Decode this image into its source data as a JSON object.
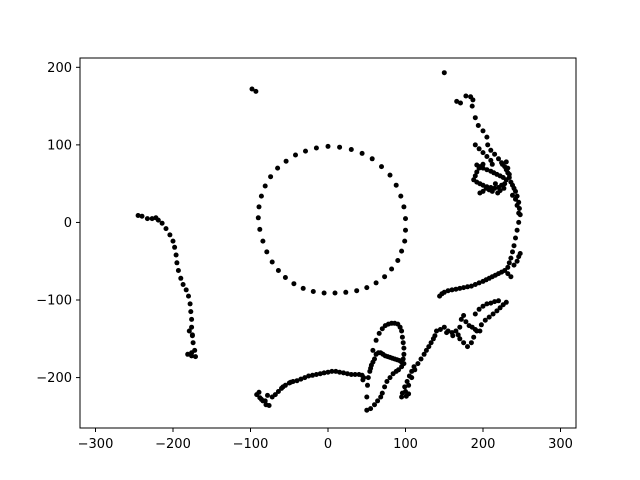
{
  "chart_data": {
    "type": "scatter",
    "title": "",
    "xlabel": "",
    "ylabel": "",
    "xlim": [
      -320,
      320
    ],
    "ylim": [
      -265,
      212
    ],
    "xticks": [
      -300,
      -200,
      -100,
      0,
      100,
      200,
      300
    ],
    "yticks": [
      -200,
      -100,
      0,
      100,
      200
    ],
    "grid": false,
    "marker_color": "#000000",
    "series": [
      {
        "points": [
          [
            0,
            98
          ],
          [
            15,
            97
          ],
          [
            30,
            94
          ],
          [
            44,
            89
          ],
          [
            57,
            82
          ],
          [
            69,
            72
          ],
          [
            80,
            61
          ],
          [
            88,
            48
          ],
          [
            94,
            34
          ],
          [
            98,
            20
          ],
          [
            100,
            5
          ],
          [
            100,
            -10
          ],
          [
            99,
            -24
          ],
          [
            95,
            -37
          ],
          [
            90,
            -49
          ],
          [
            82,
            -60
          ],
          [
            73,
            -70
          ],
          [
            62,
            -78
          ],
          [
            50,
            -84
          ],
          [
            37,
            -88
          ],
          [
            23,
            -90
          ],
          [
            9,
            -91
          ],
          [
            -5,
            -91
          ],
          [
            -19,
            -89
          ],
          [
            -32,
            -85
          ],
          [
            -44,
            -79
          ],
          [
            -55,
            -71
          ],
          [
            -64,
            -62
          ],
          [
            -72,
            -51
          ],
          [
            -79,
            -38
          ],
          [
            -84,
            -24
          ],
          [
            -88,
            -9
          ],
          [
            -90,
            6
          ],
          [
            -89,
            20
          ],
          [
            -86,
            34
          ],
          [
            -81,
            47
          ],
          [
            -74,
            59
          ],
          [
            -65,
            70
          ],
          [
            -54,
            79
          ],
          [
            -42,
            87
          ],
          [
            -29,
            92
          ],
          [
            -15,
            96
          ],
          [
            -245,
            9
          ],
          [
            -240,
            8
          ],
          [
            -233,
            5
          ],
          [
            -227,
            5
          ],
          [
            -222,
            6
          ],
          [
            -219,
            3
          ],
          [
            -214,
            -1
          ],
          [
            -209,
            -8
          ],
          [
            -204,
            -16
          ],
          [
            -200,
            -24
          ],
          [
            -198,
            -32
          ],
          [
            -196,
            -42
          ],
          [
            -195,
            -52
          ],
          [
            -193,
            -62
          ],
          [
            -190,
            -72
          ],
          [
            -187,
            -80
          ],
          [
            -183,
            -87
          ],
          [
            -180,
            -95
          ],
          [
            -178,
            -105
          ],
          [
            -177,
            -115
          ],
          [
            -176,
            -125
          ],
          [
            -176,
            -135
          ],
          [
            -175,
            -145
          ],
          [
            -174,
            -155
          ],
          [
            -172,
            -165
          ],
          [
            -176,
            -168
          ],
          [
            -181,
            -170
          ],
          [
            -176,
            -172
          ],
          [
            -171,
            -173
          ],
          [
            -179,
            -140
          ],
          [
            -175,
            -146
          ],
          [
            -98,
            172
          ],
          [
            -93,
            169
          ],
          [
            150,
            193
          ],
          [
            166,
            156
          ],
          [
            171,
            154
          ],
          [
            178,
            163
          ],
          [
            184,
            162
          ],
          [
            187,
            158
          ],
          [
            186,
            150
          ],
          [
            190,
            135
          ],
          [
            194,
            125
          ],
          [
            200,
            118
          ],
          [
            205,
            110
          ],
          [
            206,
            100
          ],
          [
            210,
            93
          ],
          [
            215,
            88
          ],
          [
            220,
            82
          ],
          [
            224,
            77
          ],
          [
            228,
            72
          ],
          [
            230,
            68
          ],
          [
            232,
            64
          ],
          [
            234,
            58
          ],
          [
            236,
            52
          ],
          [
            238,
            48
          ],
          [
            240,
            44
          ],
          [
            242,
            40
          ],
          [
            244,
            34
          ],
          [
            246,
            26
          ],
          [
            247,
            18
          ],
          [
            248,
            10
          ],
          [
            246,
            0
          ],
          [
            244,
            -10
          ],
          [
            242,
            -20
          ],
          [
            240,
            -30
          ],
          [
            238,
            -38
          ],
          [
            236,
            -46
          ],
          [
            234,
            -52
          ],
          [
            232,
            -58
          ],
          [
            228,
            -62
          ],
          [
            224,
            -64
          ],
          [
            220,
            -66
          ],
          [
            216,
            -68
          ],
          [
            212,
            -70
          ],
          [
            208,
            -72
          ],
          [
            204,
            -74
          ],
          [
            200,
            -76
          ],
          [
            195,
            -78
          ],
          [
            190,
            -80
          ],
          [
            185,
            -82
          ],
          [
            180,
            -83
          ],
          [
            175,
            -84
          ],
          [
            170,
            -85
          ],
          [
            165,
            -86
          ],
          [
            160,
            -87
          ],
          [
            155,
            -88
          ],
          [
            150,
            -90
          ],
          [
            147,
            -92
          ],
          [
            144,
            -95
          ],
          [
            190,
            100
          ],
          [
            195,
            95
          ],
          [
            200,
            90
          ],
          [
            205,
            85
          ],
          [
            210,
            80
          ],
          [
            212,
            75
          ],
          [
            200,
            75
          ],
          [
            195,
            70
          ],
          [
            192,
            65
          ],
          [
            190,
            60
          ],
          [
            188,
            55
          ],
          [
            192,
            52
          ],
          [
            196,
            50
          ],
          [
            200,
            48
          ],
          [
            205,
            46
          ],
          [
            210,
            45
          ],
          [
            215,
            44
          ],
          [
            220,
            45
          ],
          [
            224,
            48
          ],
          [
            228,
            50
          ],
          [
            230,
            55
          ],
          [
            226,
            58
          ],
          [
            222,
            60
          ],
          [
            218,
            62
          ],
          [
            214,
            64
          ],
          [
            210,
            66
          ],
          [
            205,
            68
          ],
          [
            200,
            70
          ],
          [
            196,
            72
          ],
          [
            192,
            74
          ],
          [
            225,
            75
          ],
          [
            230,
            78
          ],
          [
            232,
            70
          ],
          [
            234,
            62
          ],
          [
            216,
            50
          ],
          [
            212,
            40
          ],
          [
            208,
            42
          ],
          [
            204,
            44
          ],
          [
            200,
            40
          ],
          [
            196,
            38
          ],
          [
            219,
            38
          ],
          [
            222,
            41
          ],
          [
            227,
            44
          ],
          [
            238,
            35
          ],
          [
            242,
            30
          ],
          [
            244,
            22
          ],
          [
            246,
            12
          ],
          [
            236,
            -70
          ],
          [
            232,
            -66
          ],
          [
            240,
            -55
          ],
          [
            244,
            -50
          ],
          [
            246,
            -44
          ],
          [
            248,
            -40
          ],
          [
            140,
            -140
          ],
          [
            145,
            -138
          ],
          [
            150,
            -135
          ],
          [
            155,
            -140
          ],
          [
            160,
            -142
          ],
          [
            165,
            -140
          ],
          [
            170,
            -135
          ],
          [
            172,
            -125
          ],
          [
            175,
            -120
          ],
          [
            178,
            -128
          ],
          [
            182,
            -133
          ],
          [
            186,
            -135
          ],
          [
            190,
            -138
          ],
          [
            196,
            -140
          ],
          [
            198,
            -132
          ],
          [
            203,
            -126
          ],
          [
            208,
            -122
          ],
          [
            213,
            -118
          ],
          [
            218,
            -114
          ],
          [
            222,
            -110
          ],
          [
            226,
            -106
          ],
          [
            230,
            -103
          ],
          [
            190,
            -118
          ],
          [
            195,
            -112
          ],
          [
            200,
            -108
          ],
          [
            205,
            -105
          ],
          [
            210,
            -104
          ],
          [
            215,
            -102
          ],
          [
            220,
            -101
          ],
          [
            170,
            -150
          ],
          [
            175,
            -155
          ],
          [
            180,
            -160
          ],
          [
            185,
            -155
          ],
          [
            188,
            -148
          ],
          [
            192,
            -140
          ],
          [
            168,
            -145
          ],
          [
            161,
            -146
          ],
          [
            153,
            -142
          ],
          [
            95,
            -225
          ],
          [
            100,
            -218
          ],
          [
            104,
            -210
          ],
          [
            108,
            -200
          ],
          [
            112,
            -190
          ],
          [
            116,
            -182
          ],
          [
            120,
            -176
          ],
          [
            124,
            -170
          ],
          [
            127,
            -165
          ],
          [
            130,
            -160
          ],
          [
            133,
            -155
          ],
          [
            136,
            -150
          ],
          [
            138,
            -146
          ],
          [
            96,
            -220
          ],
          [
            99,
            -212
          ],
          [
            102,
            -205
          ],
          [
            105,
            -198
          ],
          [
            108,
            -192
          ],
          [
            111,
            -186
          ],
          [
            101,
            -224
          ],
          [
            104,
            -221
          ],
          [
            58,
            -165
          ],
          [
            62,
            -152
          ],
          [
            66,
            -143
          ],
          [
            70,
            -137
          ],
          [
            74,
            -133
          ],
          [
            78,
            -131
          ],
          [
            82,
            -130
          ],
          [
            86,
            -130
          ],
          [
            90,
            -131
          ],
          [
            93,
            -135
          ],
          [
            95,
            -140
          ],
          [
            96,
            -148
          ],
          [
            97,
            -155
          ],
          [
            98,
            -162
          ],
          [
            98,
            -170
          ],
          [
            97,
            -176
          ],
          [
            95,
            -180
          ],
          [
            92,
            -178
          ],
          [
            89,
            -177
          ],
          [
            86,
            -176
          ],
          [
            83,
            -175
          ],
          [
            80,
            -174
          ],
          [
            77,
            -173
          ],
          [
            74,
            -172
          ],
          [
            71,
            -170
          ],
          [
            68,
            -168
          ],
          [
            65,
            -168
          ],
          [
            62,
            -170
          ],
          [
            60,
            -176
          ],
          [
            58,
            -180
          ],
          [
            56,
            -184
          ],
          [
            55,
            -188
          ],
          [
            54,
            -192
          ],
          [
            52,
            -200
          ],
          [
            51,
            -210
          ],
          [
            50,
            -225
          ],
          [
            50,
            -242
          ],
          [
            55,
            -240
          ],
          [
            60,
            -235
          ],
          [
            64,
            -230
          ],
          [
            68,
            -225
          ],
          [
            70,
            -220
          ],
          [
            73,
            -212
          ],
          [
            76,
            -205
          ],
          [
            80,
            -200
          ],
          [
            84,
            -195
          ],
          [
            88,
            -192
          ],
          [
            91,
            -190
          ],
          [
            95,
            -186
          ],
          [
            98,
            -182
          ],
          [
            -92,
            -222
          ],
          [
            -88,
            -226
          ],
          [
            -84,
            -230
          ],
          [
            -80,
            -235
          ],
          [
            -76,
            -236
          ],
          [
            -72,
            -225
          ],
          [
            -68,
            -222
          ],
          [
            -64,
            -218
          ],
          [
            -60,
            -214
          ],
          [
            -55,
            -210
          ],
          [
            -50,
            -207
          ],
          [
            -45,
            -205
          ],
          [
            -40,
            -204
          ],
          [
            -35,
            -202
          ],
          [
            -30,
            -200
          ],
          [
            -25,
            -198
          ],
          [
            -20,
            -197
          ],
          [
            -15,
            -196
          ],
          [
            -10,
            -195
          ],
          [
            -5,
            -194
          ],
          [
            0,
            -193
          ],
          [
            5,
            -192
          ],
          [
            10,
            -192
          ],
          [
            15,
            -193
          ],
          [
            20,
            -194
          ],
          [
            25,
            -195
          ],
          [
            30,
            -196
          ],
          [
            35,
            -196
          ],
          [
            40,
            -196
          ],
          [
            44,
            -197
          ],
          [
            46,
            -200
          ],
          [
            45,
            -203
          ],
          [
            -86,
            -228
          ],
          [
            -81,
            -230
          ],
          [
            -89,
            -219
          ],
          [
            -78,
            -223
          ],
          [
            -58,
            -212
          ],
          [
            -48,
            -206
          ]
        ]
      }
    ]
  }
}
